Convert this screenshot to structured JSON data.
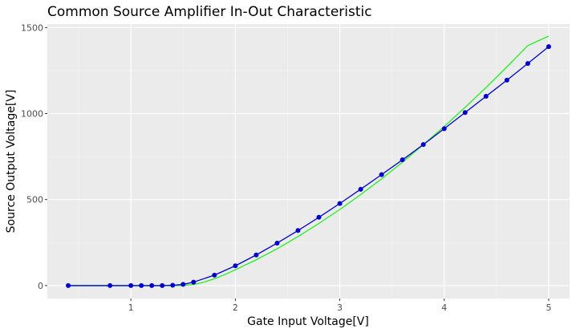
{
  "chart_data": {
    "type": "line",
    "title": "Common Source Amplifier In-Out Characteristic",
    "xlabel": "Gate Input Voltage[V]",
    "ylabel": "Source Output Voltage[V]",
    "xlim": [
      0.2,
      5.2
    ],
    "ylim": [
      -75,
      1520
    ],
    "x_ticks": [
      1,
      2,
      3,
      4,
      5
    ],
    "x_tick_labels": [
      "1",
      "2",
      "3",
      "4",
      "5"
    ],
    "y_ticks": [
      0,
      500,
      1000,
      1500
    ],
    "y_tick_labels": [
      "0",
      "500",
      "1000",
      "1500"
    ],
    "grid": true,
    "legend": "none",
    "series": [
      {
        "color": "#0000cc",
        "marker": "circle",
        "x": [
          0.4,
          0.8,
          1.0,
          1.1,
          1.2,
          1.3,
          1.4,
          1.5,
          1.6,
          1.8,
          2.0,
          2.2,
          2.4,
          2.6,
          2.8,
          3.0,
          3.2,
          3.4,
          3.6,
          3.8,
          4.0,
          4.2,
          4.4,
          4.6,
          4.8,
          5.0
        ],
        "y": [
          0,
          0,
          0,
          0,
          0,
          0,
          2,
          7,
          20,
          61,
          115,
          178,
          247,
          320,
          397,
          477,
          560,
          645,
          731,
          820,
          912,
          1006,
          1100,
          1194,
          1291,
          1389
        ]
      },
      {
        "color": "#22ee22",
        "marker": "none",
        "x": [
          0.4,
          0.8,
          1.0,
          1.2,
          1.4,
          1.5,
          1.6,
          1.7,
          1.8,
          1.9,
          2.0,
          2.2,
          2.4,
          2.6,
          2.8,
          3.0,
          3.2,
          3.4,
          3.6,
          3.8,
          4.0,
          4.2,
          4.4,
          4.6,
          4.8,
          5.0
        ],
        "y": [
          0,
          0,
          0,
          0,
          0,
          1,
          6,
          20,
          40,
          64,
          92,
          150,
          214,
          285,
          361,
          442,
          529,
          620,
          717,
          819,
          925,
          1036,
          1151,
          1271,
          1395,
          1450
        ]
      }
    ]
  }
}
